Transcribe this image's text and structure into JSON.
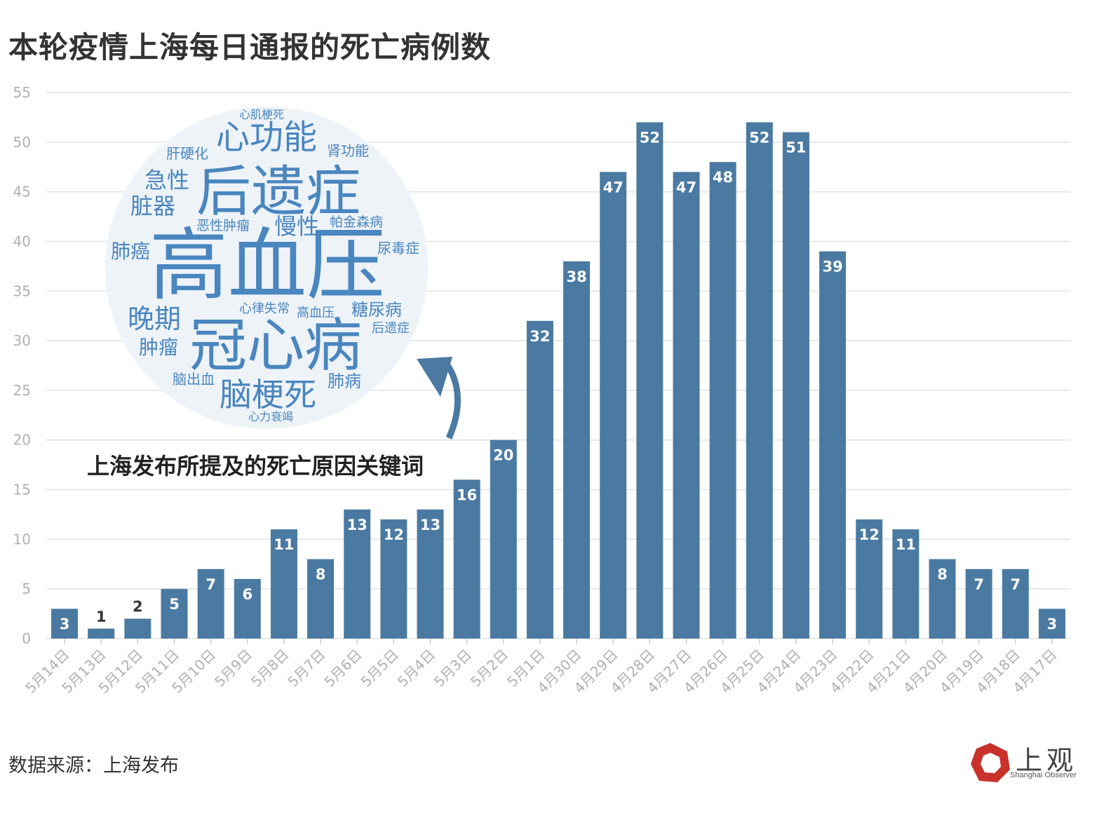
{
  "title": "本轮疫情上海每日通报的死亡病例数",
  "source": "数据来源：上海发布",
  "logo": {
    "text": "上观",
    "subtext": "Shanghai Observer",
    "accent": "#c8322b"
  },
  "annotation": "上海发布所提及的死亡原因关键词",
  "colors": {
    "bar": "#4a7aa2",
    "bar_label_inside": "#ffffff",
    "bar_label_outside": "#333333",
    "grid": "#e8e8e8",
    "tick": "#b0b0b0",
    "cloud_text": "#4a86bf",
    "cloud_bg": "#eef3f8",
    "arrow": "#4a7aa2"
  },
  "wordcloud": [
    {
      "text": "心肌梗死",
      "weight": 1
    },
    {
      "text": "心功能",
      "weight": 3
    },
    {
      "text": "肝硬化",
      "weight": 1.3
    },
    {
      "text": "肾功能",
      "weight": 1.3
    },
    {
      "text": "急性",
      "weight": 2
    },
    {
      "text": "后遗症",
      "weight": 5
    },
    {
      "text": "脏器",
      "weight": 2
    },
    {
      "text": "恶性肿瘤",
      "weight": 1.2
    },
    {
      "text": "慢性",
      "weight": 2
    },
    {
      "text": "帕金森病",
      "weight": 1.2
    },
    {
      "text": "肺癌",
      "weight": 1.8
    },
    {
      "text": "高血压",
      "weight": 8
    },
    {
      "text": "尿毒症",
      "weight": 1.3
    },
    {
      "text": "心律失常",
      "weight": 1.2
    },
    {
      "text": "高血压",
      "weight": 1.2
    },
    {
      "text": "糖尿病",
      "weight": 1.6
    },
    {
      "text": "晚期",
      "weight": 2.4
    },
    {
      "text": "后遗症",
      "weight": 1.2
    },
    {
      "text": "肿瘤",
      "weight": 1.8
    },
    {
      "text": "冠心病",
      "weight": 5.4
    },
    {
      "text": "脑出血",
      "weight": 1.3
    },
    {
      "text": "脑梗死",
      "weight": 3
    },
    {
      "text": "肺病",
      "weight": 1.6
    },
    {
      "text": "心力衰竭",
      "weight": 1.1
    }
  ],
  "chart_data": {
    "type": "bar",
    "categories": [
      "5月14日",
      "5月13日",
      "5月12日",
      "5月11日",
      "5月10日",
      "5月9日",
      "5月8日",
      "5月7日",
      "5月6日",
      "5月5日",
      "5月4日",
      "5月3日",
      "5月2日",
      "5月1日",
      "4月30日",
      "4月29日",
      "4月28日",
      "4月27日",
      "4月26日",
      "4月25日",
      "4月24日",
      "4月23日",
      "4月22日",
      "4月21日",
      "4月20日",
      "4月19日",
      "4月18日",
      "4月17日"
    ],
    "values": [
      3,
      1,
      2,
      5,
      7,
      6,
      11,
      8,
      13,
      12,
      13,
      16,
      20,
      32,
      38,
      47,
      52,
      47,
      48,
      52,
      51,
      39,
      12,
      11,
      8,
      7,
      7,
      3
    ],
    "ylim": [
      0,
      55
    ],
    "yticks": [
      0,
      5,
      10,
      15,
      20,
      25,
      30,
      35,
      40,
      45,
      50,
      55
    ],
    "grid": true,
    "data_labels": true,
    "title": "本轮疫情上海每日通报的死亡病例数"
  }
}
